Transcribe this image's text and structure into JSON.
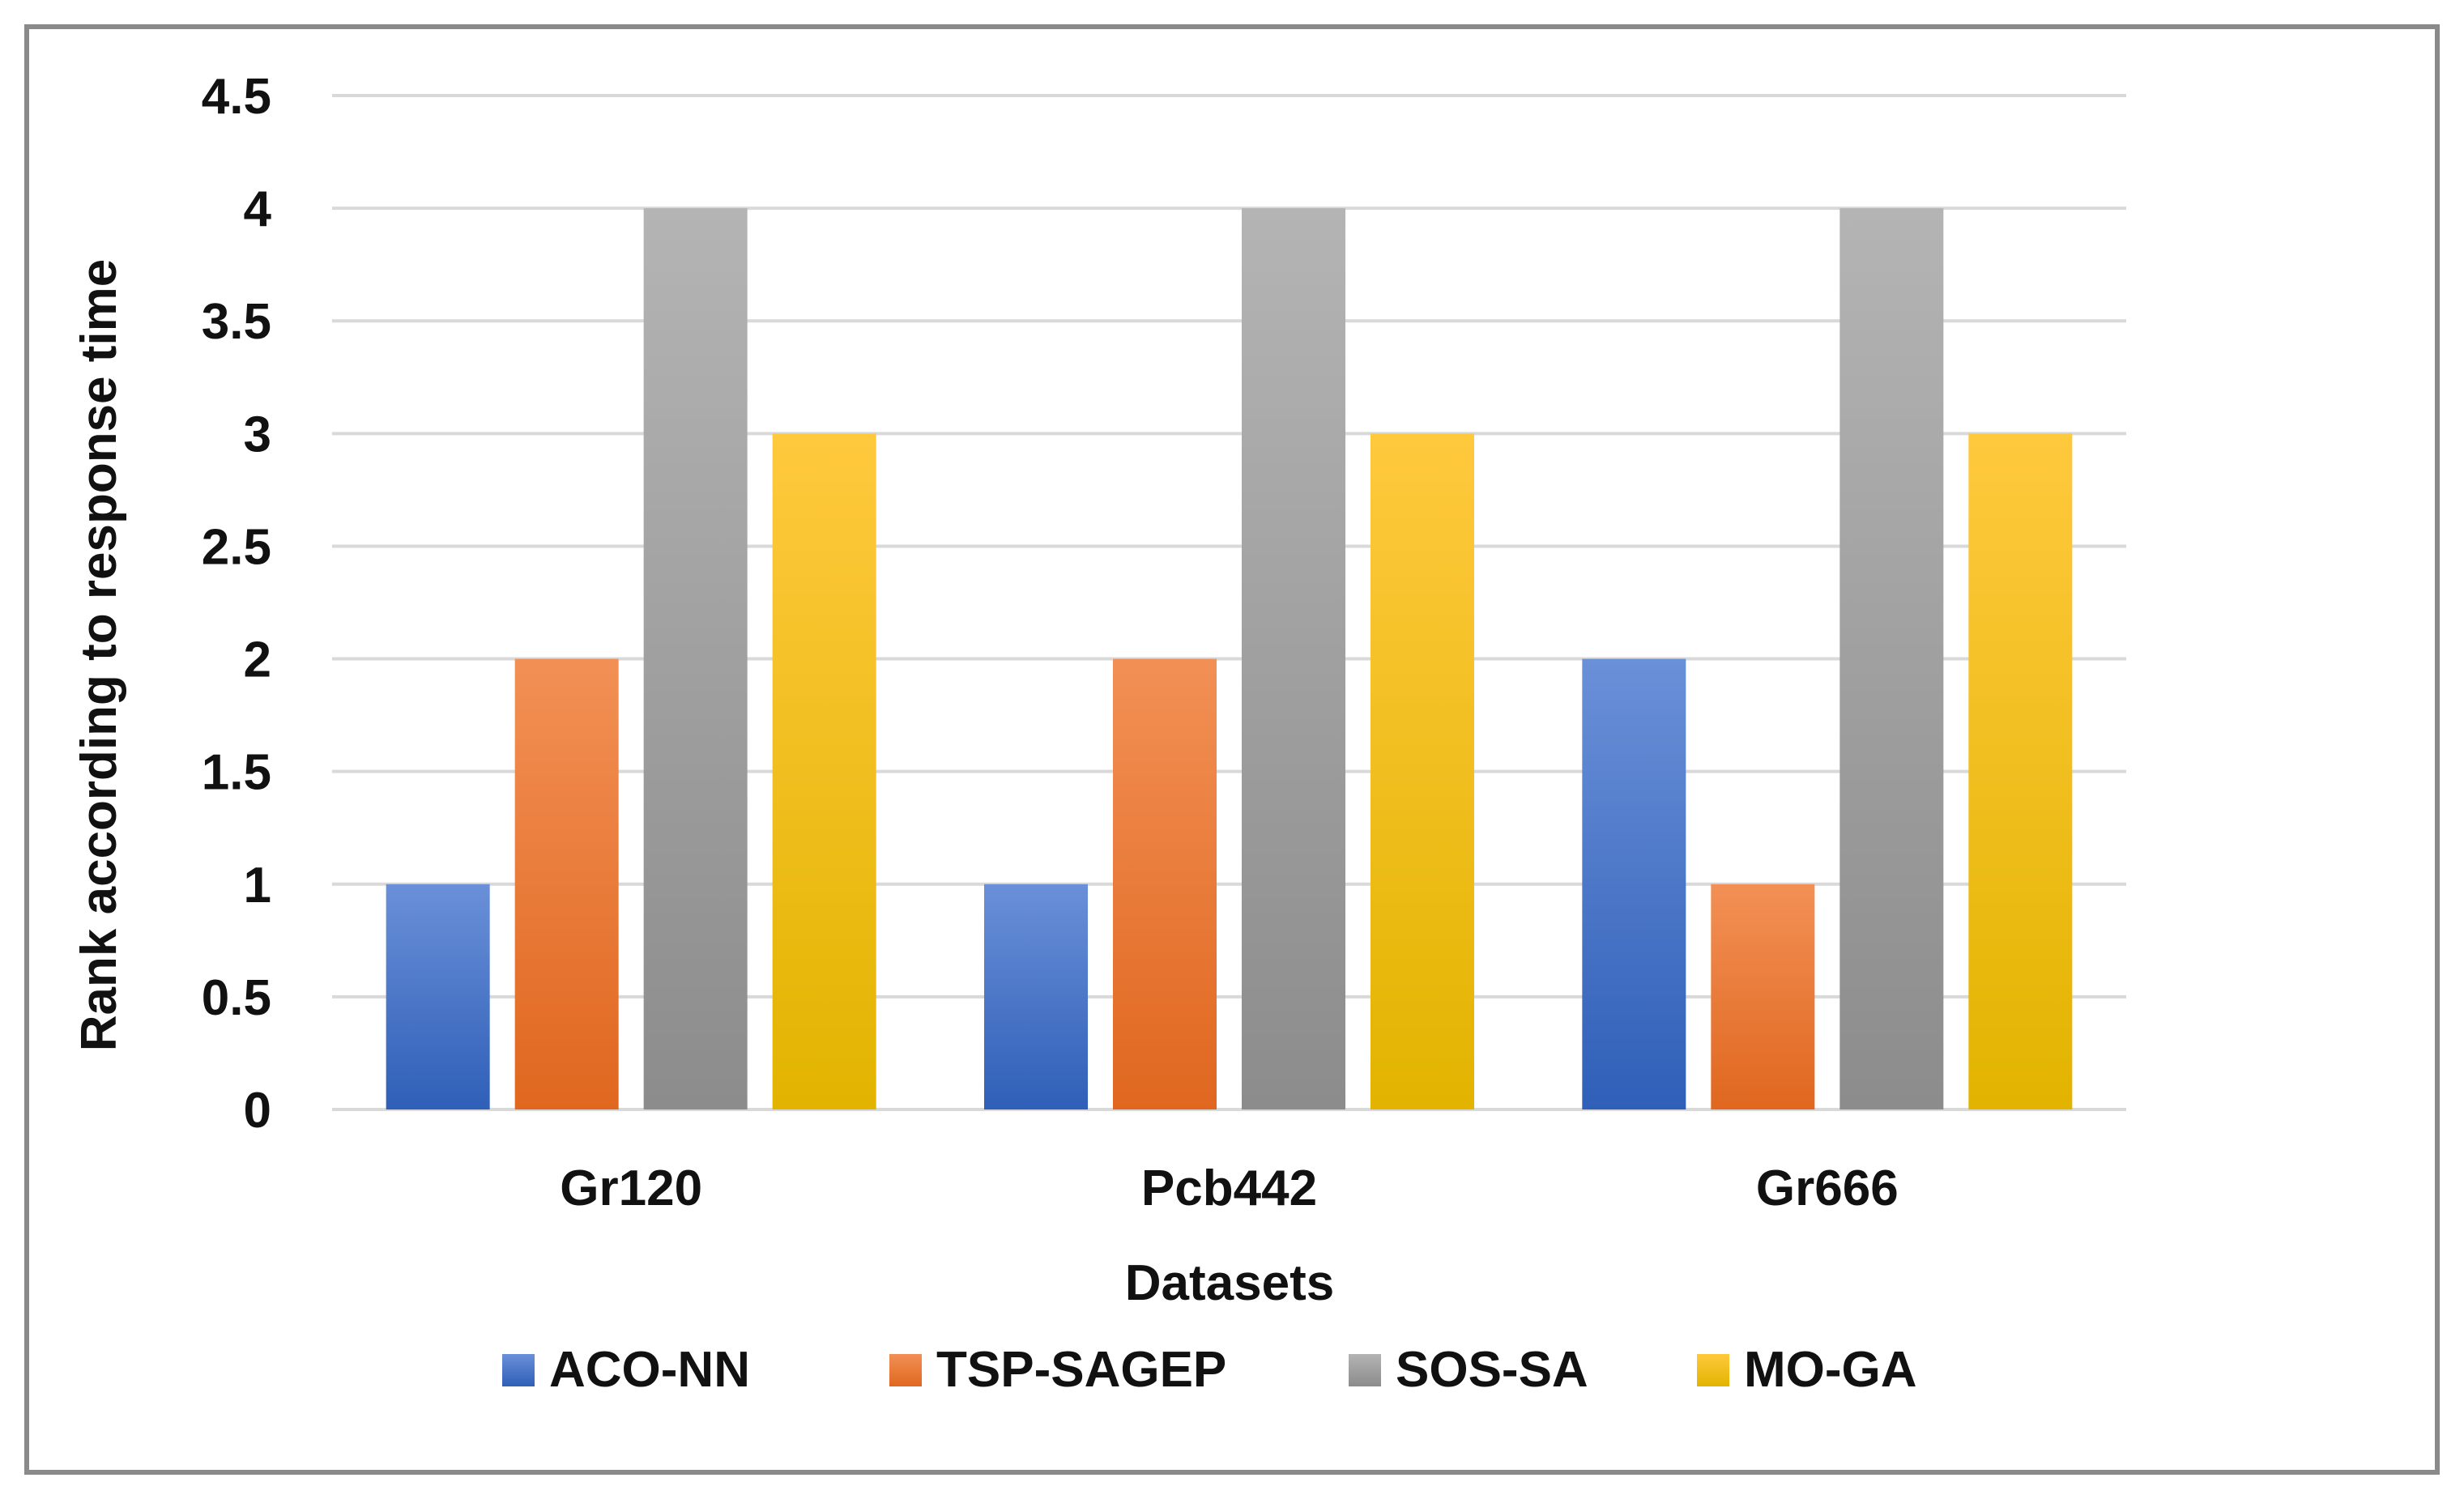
{
  "chart_data": {
    "type": "bar",
    "title": "",
    "xlabel": "Datasets",
    "ylabel": "Rank according to response time",
    "categories": [
      "Gr120",
      "Pcb442",
      "Gr666"
    ],
    "series": [
      {
        "name": "ACO-NN",
        "values": [
          1,
          1,
          2
        ],
        "color_top": "#6a90d8",
        "color_bottom": "#2f5fb8"
      },
      {
        "name": "TSP-SAGEP",
        "values": [
          2,
          2,
          1
        ],
        "color_top": "#f29055",
        "color_bottom": "#e0671f"
      },
      {
        "name": "SOS-SA",
        "values": [
          4,
          4,
          4
        ],
        "color_top": "#b4b4b4",
        "color_bottom": "#8c8c8c"
      },
      {
        "name": "MO-GA",
        "values": [
          3,
          3,
          3
        ],
        "color_top": "#ffc93d",
        "color_bottom": "#e2b400"
      }
    ],
    "ylim": [
      0,
      4.5
    ],
    "yticks": [
      0,
      0.5,
      1,
      1.5,
      2,
      2.5,
      3,
      3.5,
      4,
      4.5
    ],
    "ytick_labels": [
      "0",
      "0.5",
      "1",
      "1.5",
      "2",
      "2.5",
      "3",
      "3.5",
      "4",
      "4.5"
    ],
    "grid": true,
    "legend_position": "bottom"
  }
}
